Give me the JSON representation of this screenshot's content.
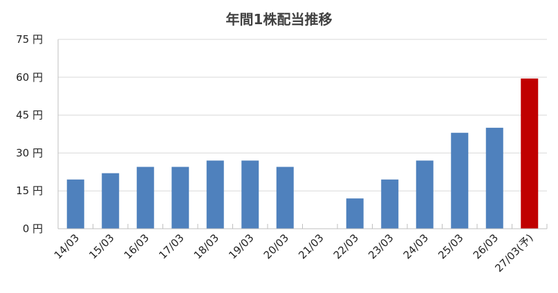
{
  "chart_data": {
    "type": "bar",
    "title": "年間1株配当推移",
    "categories": [
      "14/03",
      "15/03",
      "16/03",
      "17/03",
      "18/03",
      "19/03",
      "20/03",
      "21/03",
      "22/03",
      "23/03",
      "24/03",
      "25/03",
      "26/03",
      "27/03(予)"
    ],
    "values": [
      19.5,
      22,
      24.5,
      24.5,
      27,
      27,
      24.5,
      0,
      12,
      19.5,
      27,
      38,
      40,
      59.5
    ],
    "bar_colors": [
      "#4f81bd",
      "#4f81bd",
      "#4f81bd",
      "#4f81bd",
      "#4f81bd",
      "#4f81bd",
      "#4f81bd",
      "#4f81bd",
      "#4f81bd",
      "#4f81bd",
      "#4f81bd",
      "#4f81bd",
      "#4f81bd",
      "#c00000"
    ],
    "ylim": [
      0,
      75
    ],
    "yticks": [
      0,
      15,
      30,
      45,
      60,
      75
    ],
    "ytick_labels": [
      "0 円",
      "15 円",
      "30 円",
      "45 円",
      "60 円",
      "75 円"
    ],
    "xlabel": "",
    "ylabel": "",
    "grid": true
  }
}
